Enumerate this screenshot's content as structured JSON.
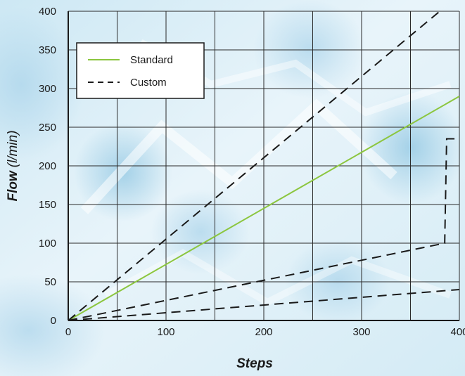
{
  "chart_data": {
    "type": "line",
    "title": "",
    "xlabel": "Steps",
    "ylabel": "Flow",
    "ylabel_unit": "(l/min)",
    "xlim": [
      0,
      400
    ],
    "ylim": [
      0,
      400
    ],
    "x_ticks": [
      0,
      100,
      200,
      300,
      400
    ],
    "y_ticks": [
      0,
      50,
      100,
      150,
      200,
      250,
      300,
      350,
      400
    ],
    "grid": true,
    "legend": {
      "placement": "top-left",
      "entries": [
        {
          "name": "Standard",
          "color": "#8cc63f",
          "style": "solid"
        },
        {
          "name": "Custom",
          "color": "#1a1a1a",
          "style": "dashed"
        }
      ]
    },
    "series": [
      {
        "name": "Standard",
        "color": "#8cc63f",
        "style": "solid",
        "points": [
          [
            0,
            0
          ],
          [
            400,
            290
          ]
        ]
      },
      {
        "name": "Custom",
        "color": "#1a1a1a",
        "style": "dashed",
        "points": [
          [
            0,
            0
          ],
          [
            380,
            400
          ]
        ]
      },
      {
        "name": "Custom",
        "color": "#1a1a1a",
        "style": "dashed",
        "points": [
          [
            0,
            0
          ],
          [
            385,
            100
          ],
          [
            387,
            235
          ],
          [
            400,
            235
          ]
        ]
      },
      {
        "name": "Custom",
        "color": "#1a1a1a",
        "style": "dashed",
        "points": [
          [
            0,
            0
          ],
          [
            400,
            40
          ]
        ]
      }
    ],
    "colors": {
      "background_light": "#dbeef7",
      "background_mid": "#bfe0ef",
      "background_dark": "#9fcfe6"
    }
  }
}
